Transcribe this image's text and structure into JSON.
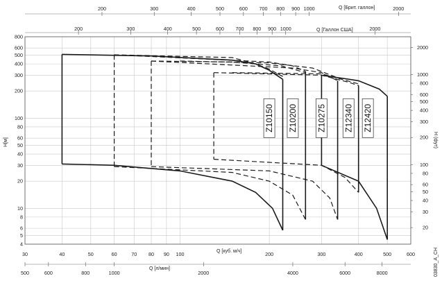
{
  "chart_data": {
    "type": "line",
    "title": "",
    "x_axis": {
      "label": "Q [куб. м/ч]",
      "scale": "log",
      "range": [
        30,
        600
      ],
      "ticks": [
        "30",
        "40",
        "50",
        "60",
        "70",
        "80",
        "90",
        "100",
        "200",
        "300",
        "400",
        "500",
        "600"
      ]
    },
    "x_axis_bottom": {
      "label": "Q [л/мин]",
      "scale": "log",
      "range": [
        500,
        10000
      ],
      "ticks": [
        "500",
        "600",
        "800",
        "1000",
        "2000",
        "4000",
        "6000",
        "8000"
      ]
    },
    "x_axis_top_us": {
      "label": "Q [Галлон США]",
      "scale": "log",
      "range": [
        132,
        2642
      ],
      "ticks": [
        "200",
        "300",
        "400",
        "500",
        "600",
        "700",
        "800",
        "900",
        "1000",
        "2000"
      ]
    },
    "x_axis_top_imp": {
      "label": "Q [Брит. галлон]",
      "scale": "log",
      "range": [
        110,
        2200
      ],
      "ticks": [
        "200",
        "300",
        "400",
        "500",
        "600",
        "700",
        "800",
        "900",
        "1000",
        "2000"
      ]
    },
    "y_axis": {
      "label": "H[м]",
      "scale": "log",
      "range": [
        4,
        800
      ],
      "ticks": [
        "4",
        "5",
        "6",
        "8",
        "10",
        "20",
        "30",
        "40",
        "50",
        "60",
        "80",
        "100",
        "200",
        "300",
        "400",
        "500",
        "600",
        "800"
      ]
    },
    "y_axis_right": {
      "label": "H (фут)",
      "scale": "log",
      "range": [
        13.1,
        2625
      ],
      "ticks": [
        "20",
        "30",
        "40",
        "50",
        "60",
        "80",
        "100",
        "200",
        "300",
        "400",
        "500",
        "600",
        "800",
        "1000",
        "2000"
      ]
    },
    "grid": true,
    "footer_code": "03830_A_CH",
    "series": [
      {
        "name": "Z10150",
        "upper": [
          [
            40,
            510
          ],
          [
            80,
            490
          ],
          [
            150,
            440
          ],
          [
            180,
            400
          ],
          [
            200,
            340
          ],
          [
            222,
            270
          ]
        ],
        "lower": [
          [
            40,
            31
          ],
          [
            60,
            30
          ],
          [
            100,
            26
          ],
          [
            150,
            20
          ],
          [
            180,
            15
          ],
          [
            205,
            10
          ],
          [
            222,
            5.7
          ]
        ],
        "dashed": [
          [
            60,
            505
          ],
          [
            150,
            470
          ],
          [
            180,
            400
          ],
          [
            200,
            350
          ],
          [
            222,
            290
          ]
        ],
        "label_position": {
          "x": 200,
          "y": 100
        }
      },
      {
        "name": "Z10200",
        "upper": [
          [
            60,
            505
          ],
          [
            200,
            420
          ],
          [
            240,
            380
          ],
          [
            265,
            330
          ]
        ],
        "lower": [
          [
            60,
            29
          ],
          [
            150,
            25
          ],
          [
            200,
            20
          ],
          [
            240,
            14
          ],
          [
            265,
            7.5
          ]
        ],
        "dashed": [
          [
            80,
            430
          ],
          [
            150,
            420
          ],
          [
            220,
            380
          ],
          [
            265,
            320
          ]
        ],
        "label_position": {
          "x": 240,
          "y": 100
        }
      },
      {
        "name": "Z10275",
        "upper": [
          [
            80,
            430
          ],
          [
            240,
            360
          ],
          [
            300,
            320
          ],
          [
            340,
            260
          ]
        ],
        "lower": [
          [
            80,
            29
          ],
          [
            200,
            26
          ],
          [
            280,
            20
          ],
          [
            320,
            13
          ],
          [
            340,
            7.5
          ]
        ],
        "dashed": [
          [
            100,
            430
          ],
          [
            200,
            410
          ],
          [
            280,
            360
          ],
          [
            340,
            280
          ]
        ],
        "label_position": {
          "x": 300,
          "y": 100
        }
      },
      {
        "name": "Z12340",
        "upper": [
          [
            130,
            320
          ],
          [
            300,
            300
          ],
          [
            370,
            250
          ],
          [
            400,
            230
          ]
        ],
        "lower": [
          [
            130,
            35
          ],
          [
            300,
            30
          ],
          [
            360,
            22
          ],
          [
            400,
            15
          ]
        ],
        "dashed": [
          [
            150,
            320
          ],
          [
            300,
            310
          ],
          [
            400,
            240
          ]
        ],
        "label_position": {
          "x": 370,
          "y": 100
        }
      },
      {
        "name": "Z12420",
        "upper": [
          [
            300,
            300
          ],
          [
            400,
            260
          ],
          [
            470,
            210
          ],
          [
            500,
            175
          ]
        ],
        "lower": [
          [
            300,
            30
          ],
          [
            400,
            20
          ],
          [
            460,
            10
          ],
          [
            500,
            4.5
          ]
        ],
        "label_position": {
          "x": 430,
          "y": 100
        }
      }
    ]
  }
}
